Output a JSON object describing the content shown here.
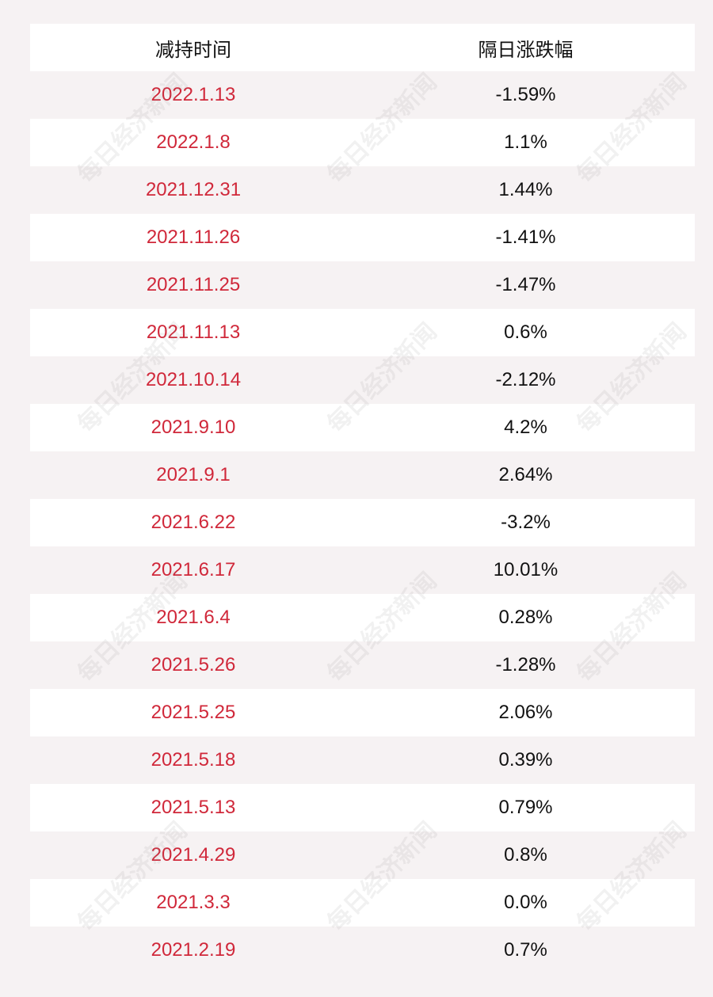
{
  "table": {
    "header": [
      "减持时间",
      "隔日涨跌幅"
    ],
    "rows": [
      [
        "2022.1.13",
        "-1.59%"
      ],
      [
        "2022.1.8",
        "1.1%"
      ],
      [
        "2021.12.31",
        "1.44%"
      ],
      [
        "2021.11.26",
        "-1.41%"
      ],
      [
        "2021.11.25",
        "-1.47%"
      ],
      [
        "2021.11.13",
        "0.6%"
      ],
      [
        "2021.10.14",
        "-2.12%"
      ],
      [
        "2021.9.10",
        "4.2%"
      ],
      [
        "2021.9.1",
        "2.64%"
      ],
      [
        "2021.6.22",
        "-3.2%"
      ],
      [
        "2021.6.17",
        "10.01%"
      ],
      [
        "2021.6.4",
        "0.28%"
      ],
      [
        "2021.5.26",
        "-1.28%"
      ],
      [
        "2021.5.25",
        "2.06%"
      ],
      [
        "2021.5.18",
        "0.39%"
      ],
      [
        "2021.5.13",
        "0.79%"
      ],
      [
        "2021.4.29",
        "0.8%"
      ],
      [
        "2021.3.3",
        "0.0%"
      ],
      [
        "2021.2.19",
        "0.7%"
      ]
    ]
  },
  "watermark": "每日经济新闻"
}
